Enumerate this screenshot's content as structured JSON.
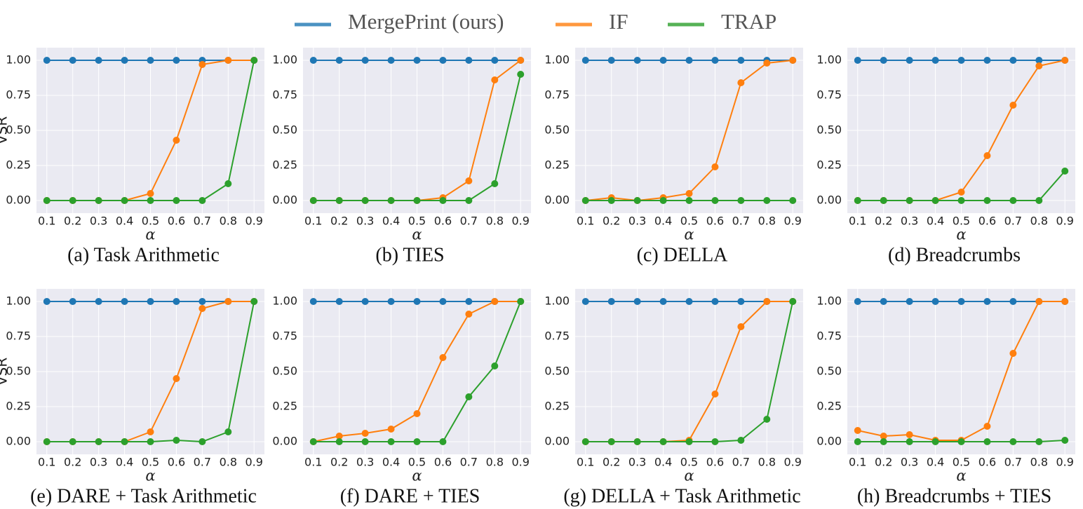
{
  "legend": [
    {
      "name": "MergePrint (ours)",
      "color": "#1f77b4"
    },
    {
      "name": "IF",
      "color": "#ff7f0e"
    },
    {
      "name": "TRAP",
      "color": "#2ca02c"
    }
  ],
  "chart_data": [
    {
      "type": "line",
      "title": "(a) Task Arithmetic",
      "xlabel": "α",
      "ylabel": "VSR",
      "x": [
        0.1,
        0.2,
        0.3,
        0.4,
        0.5,
        0.6,
        0.7,
        0.8,
        0.9
      ],
      "xlim": [
        0.06,
        0.94
      ],
      "xticks": [
        0.1,
        0.2,
        0.3,
        0.4,
        0.5,
        0.6,
        0.7,
        0.8,
        0.9
      ],
      "ylim": [
        -0.09,
        1.09
      ],
      "yticks": [
        {
          "value": 0,
          "label": "0.00"
        },
        {
          "value": 0.25,
          "label": "0.25"
        },
        {
          "value": 0.5,
          "label": "0.50"
        },
        {
          "value": 0.75,
          "label": "0.75"
        },
        {
          "value": 1,
          "label": "1.00"
        }
      ],
      "grid": true,
      "series": [
        {
          "values": [
            1,
            1,
            1,
            1,
            1,
            1,
            1,
            1,
            1
          ]
        },
        {
          "values": [
            0,
            0,
            0,
            0,
            0.05,
            0.43,
            0.97,
            1,
            1
          ]
        },
        {
          "values": [
            0,
            0,
            0,
            0,
            0,
            0,
            0,
            0.12,
            1
          ]
        }
      ]
    },
    {
      "type": "line",
      "title": "(b) TIES",
      "xlabel": "α",
      "x": [
        0.1,
        0.2,
        0.3,
        0.4,
        0.5,
        0.6,
        0.7,
        0.8,
        0.9
      ],
      "xlim": [
        0.06,
        0.94
      ],
      "xticks": [
        0.1,
        0.2,
        0.3,
        0.4,
        0.5,
        0.6,
        0.7,
        0.8,
        0.9
      ],
      "ylim": [
        -0.09,
        1.09
      ],
      "yticks": [
        {
          "value": 0,
          "label": "0.00"
        },
        {
          "value": 0.25,
          "label": "0.25"
        },
        {
          "value": 0.5,
          "label": "0.50"
        },
        {
          "value": 0.75,
          "label": "0.75"
        },
        {
          "value": 1,
          "label": "1.00"
        }
      ],
      "grid": true,
      "series": [
        {
          "values": [
            1,
            1,
            1,
            1,
            1,
            1,
            1,
            1,
            1
          ]
        },
        {
          "values": [
            0,
            0,
            0,
            0,
            0,
            0.02,
            0.14,
            0.86,
            1
          ]
        },
        {
          "values": [
            0,
            0,
            0,
            0,
            0,
            0,
            0,
            0.12,
            0.9
          ]
        }
      ]
    },
    {
      "type": "line",
      "title": "(c) DELLA",
      "xlabel": "α",
      "x": [
        0.1,
        0.2,
        0.3,
        0.4,
        0.5,
        0.6,
        0.7,
        0.8,
        0.9
      ],
      "xlim": [
        0.06,
        0.94
      ],
      "xticks": [
        0.1,
        0.2,
        0.3,
        0.4,
        0.5,
        0.6,
        0.7,
        0.8,
        0.9
      ],
      "ylim": [
        -0.09,
        1.09
      ],
      "yticks": [
        {
          "value": 0,
          "label": "0.00"
        },
        {
          "value": 0.25,
          "label": "0.25"
        },
        {
          "value": 0.5,
          "label": "0.50"
        },
        {
          "value": 0.75,
          "label": "0.75"
        },
        {
          "value": 1,
          "label": "1.00"
        }
      ],
      "grid": true,
      "series": [
        {
          "values": [
            1,
            1,
            1,
            1,
            1,
            1,
            1,
            1,
            1
          ]
        },
        {
          "values": [
            0,
            0.02,
            0,
            0.02,
            0.05,
            0.24,
            0.84,
            0.98,
            1
          ]
        },
        {
          "values": [
            0,
            0,
            0,
            0,
            0,
            0,
            0,
            0,
            0
          ]
        }
      ]
    },
    {
      "type": "line",
      "title": "(d) Breadcrumbs",
      "xlabel": "α",
      "x": [
        0.1,
        0.2,
        0.3,
        0.4,
        0.5,
        0.6,
        0.7,
        0.8,
        0.9
      ],
      "xlim": [
        0.06,
        0.94
      ],
      "xticks": [
        0.1,
        0.2,
        0.3,
        0.4,
        0.5,
        0.6,
        0.7,
        0.8,
        0.9
      ],
      "ylim": [
        -0.09,
        1.09
      ],
      "yticks": [
        {
          "value": 0,
          "label": "0.00"
        },
        {
          "value": 0.25,
          "label": "0.25"
        },
        {
          "value": 0.5,
          "label": "0.50"
        },
        {
          "value": 0.75,
          "label": "0.75"
        },
        {
          "value": 1,
          "label": "1.00"
        }
      ],
      "grid": true,
      "series": [
        {
          "values": [
            1,
            1,
            1,
            1,
            1,
            1,
            1,
            1,
            1
          ]
        },
        {
          "values": [
            0,
            0,
            0,
            0,
            0.06,
            0.32,
            0.68,
            0.96,
            1
          ]
        },
        {
          "values": [
            0,
            0,
            0,
            0,
            0,
            0,
            0,
            0,
            0.21
          ]
        }
      ]
    },
    {
      "type": "line",
      "title": "(e) DARE + Task Arithmetic",
      "xlabel": "α",
      "ylabel": "VSR",
      "x": [
        0.1,
        0.2,
        0.3,
        0.4,
        0.5,
        0.6,
        0.7,
        0.8,
        0.9
      ],
      "xlim": [
        0.06,
        0.94
      ],
      "xticks": [
        0.1,
        0.2,
        0.3,
        0.4,
        0.5,
        0.6,
        0.7,
        0.8,
        0.9
      ],
      "ylim": [
        -0.09,
        1.09
      ],
      "yticks": [
        {
          "value": 0,
          "label": "0.00"
        },
        {
          "value": 0.25,
          "label": "0.25"
        },
        {
          "value": 0.5,
          "label": "0.50"
        },
        {
          "value": 0.75,
          "label": "0.75"
        },
        {
          "value": 1,
          "label": "1.00"
        }
      ],
      "grid": true,
      "series": [
        {
          "values": [
            1,
            1,
            1,
            1,
            1,
            1,
            1,
            1,
            1
          ]
        },
        {
          "values": [
            0,
            0,
            0,
            0,
            0.07,
            0.45,
            0.95,
            1,
            1
          ]
        },
        {
          "values": [
            0,
            0,
            0,
            0,
            0,
            0.01,
            0,
            0.07,
            1
          ]
        }
      ]
    },
    {
      "type": "line",
      "title": "(f) DARE + TIES",
      "xlabel": "α",
      "x": [
        0.1,
        0.2,
        0.3,
        0.4,
        0.5,
        0.6,
        0.7,
        0.8,
        0.9
      ],
      "xlim": [
        0.06,
        0.94
      ],
      "xticks": [
        0.1,
        0.2,
        0.3,
        0.4,
        0.5,
        0.6,
        0.7,
        0.8,
        0.9
      ],
      "ylim": [
        -0.09,
        1.09
      ],
      "yticks": [
        {
          "value": 0,
          "label": "0.00"
        },
        {
          "value": 0.25,
          "label": "0.25"
        },
        {
          "value": 0.5,
          "label": "0.50"
        },
        {
          "value": 0.75,
          "label": "0.75"
        },
        {
          "value": 1,
          "label": "1.00"
        }
      ],
      "grid": true,
      "series": [
        {
          "values": [
            1,
            1,
            1,
            1,
            1,
            1,
            1,
            1,
            1
          ]
        },
        {
          "values": [
            0,
            0.04,
            0.06,
            0.09,
            0.2,
            0.6,
            0.91,
            1,
            1
          ]
        },
        {
          "values": [
            0,
            0,
            0,
            0,
            0,
            0,
            0.32,
            0.54,
            1
          ]
        }
      ]
    },
    {
      "type": "line",
      "title": "(g) DELLA + Task Arithmetic",
      "xlabel": "α",
      "x": [
        0.1,
        0.2,
        0.3,
        0.4,
        0.5,
        0.6,
        0.7,
        0.8,
        0.9
      ],
      "xlim": [
        0.06,
        0.94
      ],
      "xticks": [
        0.1,
        0.2,
        0.3,
        0.4,
        0.5,
        0.6,
        0.7,
        0.8,
        0.9
      ],
      "ylim": [
        -0.09,
        1.09
      ],
      "yticks": [
        {
          "value": 0,
          "label": "0.00"
        },
        {
          "value": 0.25,
          "label": "0.25"
        },
        {
          "value": 0.5,
          "label": "0.50"
        },
        {
          "value": 0.75,
          "label": "0.75"
        },
        {
          "value": 1,
          "label": "1.00"
        }
      ],
      "grid": true,
      "series": [
        {
          "values": [
            1,
            1,
            1,
            1,
            1,
            1,
            1,
            1,
            1
          ]
        },
        {
          "values": [
            0,
            0,
            0,
            0,
            0.01,
            0.34,
            0.82,
            1,
            1
          ]
        },
        {
          "values": [
            0,
            0,
            0,
            0,
            0,
            0,
            0.01,
            0.16,
            1
          ]
        }
      ]
    },
    {
      "type": "line",
      "title": "(h) Breadcrumbs + TIES",
      "xlabel": "α",
      "x": [
        0.1,
        0.2,
        0.3,
        0.4,
        0.5,
        0.6,
        0.7,
        0.8,
        0.9
      ],
      "xlim": [
        0.06,
        0.94
      ],
      "xticks": [
        0.1,
        0.2,
        0.3,
        0.4,
        0.5,
        0.6,
        0.7,
        0.8,
        0.9
      ],
      "ylim": [
        -0.09,
        1.09
      ],
      "yticks": [
        {
          "value": 0,
          "label": "0.00"
        },
        {
          "value": 0.25,
          "label": "0.25"
        },
        {
          "value": 0.5,
          "label": "0.50"
        },
        {
          "value": 0.75,
          "label": "0.75"
        },
        {
          "value": 1,
          "label": "1.00"
        }
      ],
      "grid": true,
      "series": [
        {
          "values": [
            1,
            1,
            1,
            1,
            1,
            1,
            1,
            1,
            1
          ]
        },
        {
          "values": [
            0.08,
            0.04,
            0.05,
            0.01,
            0.01,
            0.11,
            0.63,
            1,
            1
          ]
        },
        {
          "values": [
            0,
            0,
            0,
            0,
            0,
            0,
            0,
            0,
            0.01
          ]
        }
      ]
    }
  ]
}
